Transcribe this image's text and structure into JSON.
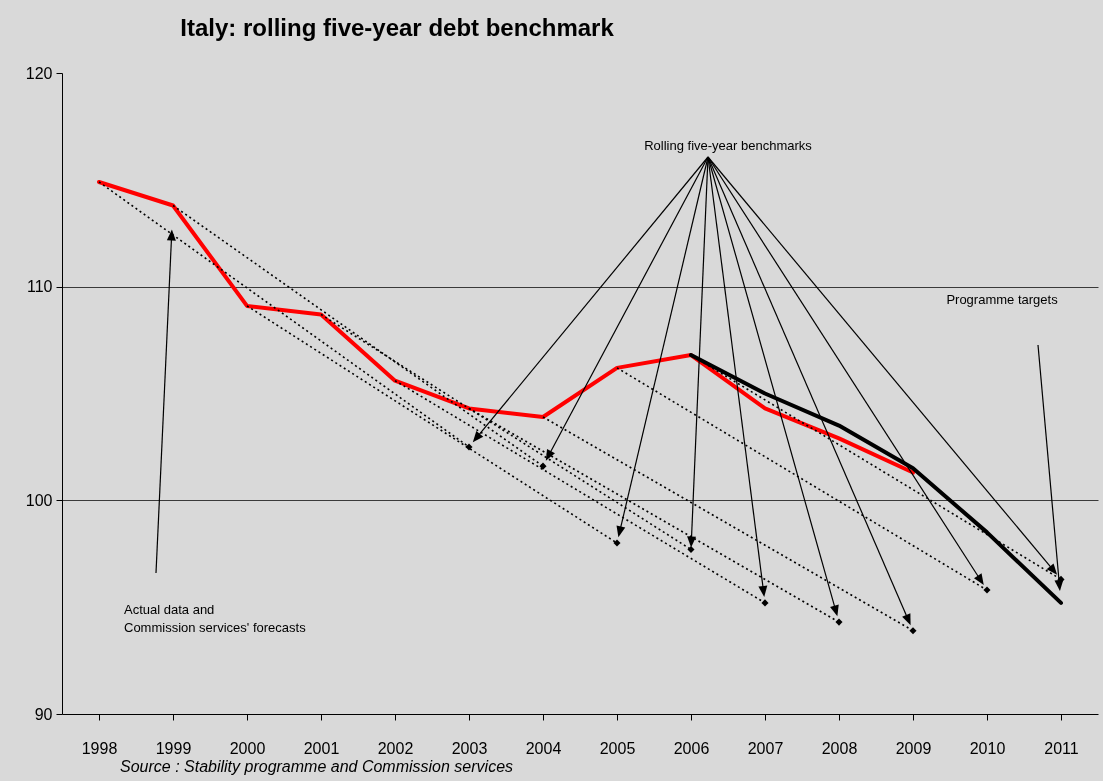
{
  "chart_data": {
    "type": "line",
    "title": "Italy: rolling five-year debt benchmark",
    "x": [
      1998,
      1999,
      2000,
      2001,
      2002,
      2003,
      2004,
      2005,
      2006,
      2007,
      2008,
      2009,
      2010,
      2011
    ],
    "series": [
      {
        "color": "#ff0000",
        "values": [
          114.9,
          113.8,
          109.1,
          108.7,
          105.6,
          104.3,
          103.9,
          106.2,
          106.8,
          104.3,
          102.9,
          101.3,
          null,
          null
        ]
      },
      {
        "color": "#000000",
        "values": [
          null,
          null,
          null,
          null,
          null,
          null,
          null,
          null,
          106.8,
          105.0,
          103.5,
          101.5,
          98.5,
          95.2
        ]
      },
      {
        "color": "#000000",
        "line_style": "dotted",
        "x": [
          1998,
          2003
        ],
        "values": [
          114.9,
          102.5
        ]
      },
      {
        "color": "#000000",
        "line_style": "dotted",
        "x": [
          1999,
          2004
        ],
        "values": [
          113.8,
          101.6
        ]
      },
      {
        "color": "#000000",
        "line_style": "dotted",
        "x": [
          2000,
          2005
        ],
        "values": [
          109.1,
          98.0
        ]
      },
      {
        "color": "#000000",
        "line_style": "dotted",
        "x": [
          2001,
          2006
        ],
        "values": [
          108.7,
          97.7
        ]
      },
      {
        "color": "#000000",
        "line_style": "dotted",
        "x": [
          2002,
          2007
        ],
        "values": [
          105.6,
          95.2
        ]
      },
      {
        "color": "#000000",
        "line_style": "dotted",
        "x": [
          2003,
          2008
        ],
        "values": [
          104.3,
          94.3
        ]
      },
      {
        "color": "#000000",
        "line_style": "dotted",
        "x": [
          2004,
          2009
        ],
        "values": [
          103.9,
          93.9
        ]
      },
      {
        "color": "#000000",
        "line_style": "dotted",
        "x": [
          2005,
          2010
        ],
        "values": [
          106.2,
          95.8
        ]
      },
      {
        "color": "#000000",
        "line_style": "dotted",
        "x": [
          2006,
          2011
        ],
        "values": [
          106.8,
          96.3
        ]
      },
      {
        "type": "scatter",
        "marker": "diamond",
        "color": "#000000",
        "x": [
          2003,
          2004,
          2005,
          2006,
          2007,
          2008,
          2009,
          2010,
          2011
        ],
        "values": [
          102.5,
          101.6,
          98.0,
          97.7,
          95.2,
          94.3,
          93.9,
          95.8,
          96.3
        ]
      }
    ],
    "xlim": [
      1997.5,
      2011.5
    ],
    "xticks": [
      1998,
      1999,
      2000,
      2001,
      2002,
      2003,
      2004,
      2005,
      2006,
      2007,
      2008,
      2009,
      2010,
      2011
    ],
    "ylim": [
      90,
      120
    ],
    "yticks": [
      90,
      100,
      110,
      120
    ],
    "grid": "y",
    "marker": "none",
    "line_style": "solid",
    "annotations": [
      "Source :  Stability programme and Commission services",
      {
        "text": "Rolling five-year benchmarks",
        "x": 2006,
        "y": 97.7
      },
      "Programme targets",
      "Actual data and\nCommission services' forecasts"
    ]
  }
}
